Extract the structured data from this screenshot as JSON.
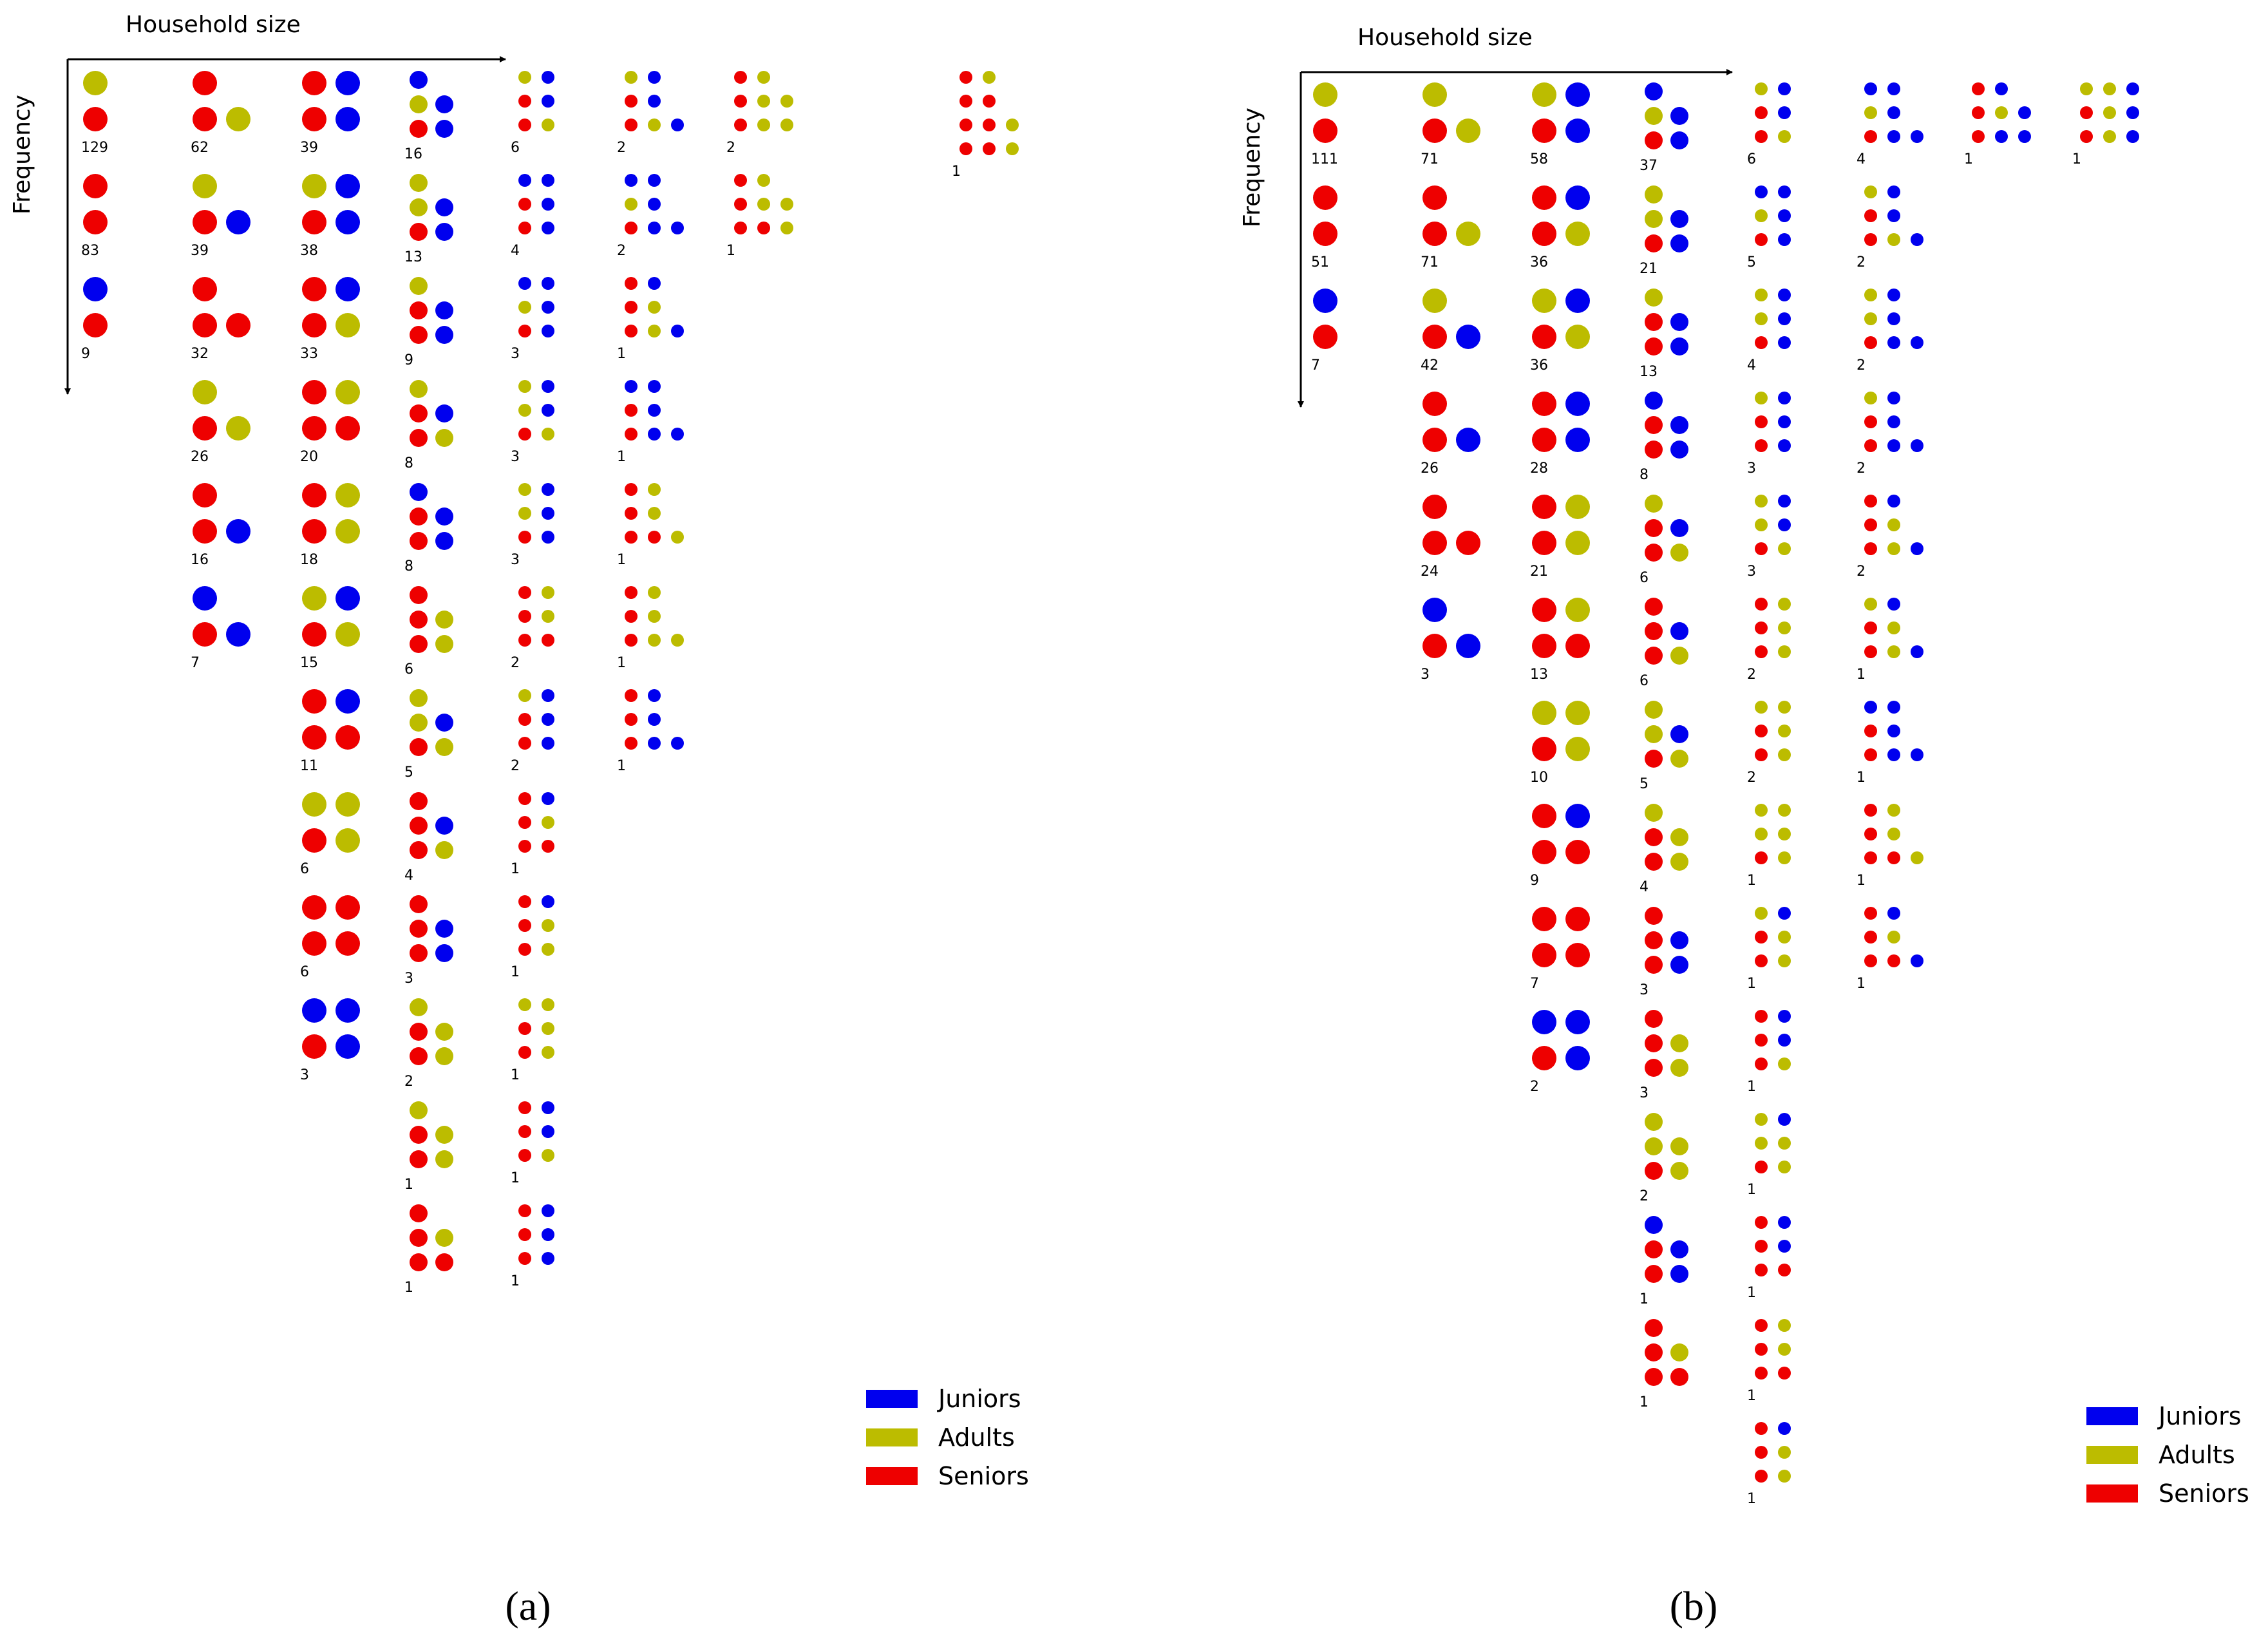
{
  "colors": {
    "juniors": "#0000ee",
    "adults": "#bcbc00",
    "seniors": "#ee0000"
  },
  "legend": {
    "juniors": "Juniors",
    "adults": "Adults",
    "seniors": "Seniors"
  },
  "panels": [
    {
      "id": "a",
      "caption": "(a)",
      "x_axis_label": "Household size",
      "y_axis_label": "Frequency",
      "columns": [
        {
          "size": 2,
          "groups": [
            {
              "count": "129",
              "rows": [
                "A",
                "S"
              ]
            },
            {
              "count": "83",
              "rows": [
                "S",
                "S"
              ]
            },
            {
              "count": "9",
              "rows": [
                "J",
                "S"
              ]
            }
          ]
        },
        {
          "size": 3,
          "groups": [
            {
              "count": "62",
              "rows": [
                "S",
                "SA"
              ]
            },
            {
              "count": "39",
              "rows": [
                "A",
                "SJ"
              ]
            },
            {
              "count": "32",
              "rows": [
                "S",
                "SS"
              ]
            },
            {
              "count": "26",
              "rows": [
                "A",
                "SA"
              ]
            },
            {
              "count": "16",
              "rows": [
                "S",
                "SJ"
              ]
            },
            {
              "count": "7",
              "rows": [
                "J",
                "SJ"
              ]
            }
          ]
        },
        {
          "size": 4,
          "groups": [
            {
              "count": "39",
              "rows": [
                "SJ",
                "SJ"
              ]
            },
            {
              "count": "38",
              "rows": [
                "AJ",
                "SJ"
              ]
            },
            {
              "count": "33",
              "rows": [
                "SJ",
                "SA"
              ]
            },
            {
              "count": "20",
              "rows": [
                "SA",
                "SS"
              ]
            },
            {
              "count": "18",
              "rows": [
                "SA",
                "SA"
              ]
            },
            {
              "count": "15",
              "rows": [
                "AJ",
                "SA"
              ]
            },
            {
              "count": "11",
              "rows": [
                "SJ",
                "SS"
              ]
            },
            {
              "count": "6",
              "rows": [
                "AA",
                "SA"
              ]
            },
            {
              "count": "6",
              "rows": [
                "SS",
                "SS"
              ]
            },
            {
              "count": "3",
              "rows": [
                "JJ",
                "SJ"
              ]
            }
          ]
        },
        {
          "size": 5,
          "groups": [
            {
              "count": "16",
              "rows": [
                "J",
                "AJ",
                "SJ"
              ]
            },
            {
              "count": "13",
              "rows": [
                "A",
                "AJ",
                "SJ"
              ]
            },
            {
              "count": "9",
              "rows": [
                "A",
                "SJ",
                "SJ"
              ]
            },
            {
              "count": "8",
              "rows": [
                "A",
                "SJ",
                "SA"
              ]
            },
            {
              "count": "8",
              "rows": [
                "J",
                "SJ",
                "SJ"
              ]
            },
            {
              "count": "6",
              "rows": [
                "S",
                "SA",
                "SA"
              ]
            },
            {
              "count": "5",
              "rows": [
                "A",
                "AJ",
                "SA"
              ]
            },
            {
              "count": "4",
              "rows": [
                "S",
                "SJ",
                "SA"
              ]
            },
            {
              "count": "3",
              "rows": [
                "S",
                "SJ",
                "SJ"
              ]
            },
            {
              "count": "2",
              "rows": [
                "A",
                "SA",
                "SA"
              ]
            },
            {
              "count": "1",
              "rows": [
                "A",
                "SA",
                "SA"
              ]
            },
            {
              "count": "1",
              "rows": [
                "S",
                "SA",
                "SS"
              ]
            }
          ]
        },
        {
          "size": 6,
          "groups": [
            {
              "count": "6",
              "rows": [
                "AJ",
                "SJ",
                "SA"
              ]
            },
            {
              "count": "4",
              "rows": [
                "JJ",
                "SJ",
                "SJ"
              ]
            },
            {
              "count": "3",
              "rows": [
                "JJ",
                "AJ",
                "SJ"
              ]
            },
            {
              "count": "3",
              "rows": [
                "AJ",
                "AJ",
                "SA"
              ]
            },
            {
              "count": "3",
              "rows": [
                "AJ",
                "AJ",
                "SJ"
              ]
            },
            {
              "count": "2",
              "rows": [
                "SA",
                "SA",
                "SS"
              ]
            },
            {
              "count": "2",
              "rows": [
                "AJ",
                "SJ",
                "SJ"
              ]
            },
            {
              "count": "1",
              "rows": [
                "SJ",
                "SA",
                "SS"
              ]
            },
            {
              "count": "1",
              "rows": [
                "SJ",
                "SA",
                "SA"
              ]
            },
            {
              "count": "1",
              "rows": [
                "AA",
                "SA",
                "SA"
              ]
            },
            {
              "count": "1",
              "rows": [
                "SJ",
                "SJ",
                "SA"
              ]
            },
            {
              "count": "1",
              "rows": [
                "SJ",
                "SJ",
                "SJ"
              ]
            }
          ]
        },
        {
          "size": 7,
          "groups": [
            {
              "count": "2",
              "rows": [
                "AJ",
                "SJ",
                "SAJ"
              ]
            },
            {
              "count": "2",
              "rows": [
                "JJ",
                "AJ",
                "SJJ"
              ]
            },
            {
              "count": "1",
              "rows": [
                "SJ",
                "SA",
                "SAJ"
              ]
            },
            {
              "count": "1",
              "rows": [
                "JJ",
                "SJ",
                "SJJ"
              ]
            },
            {
              "count": "1",
              "rows": [
                "SA",
                "SA",
                "SSA"
              ]
            },
            {
              "count": "1",
              "rows": [
                "SA",
                "SA",
                "SAA"
              ]
            },
            {
              "count": "1",
              "rows": [
                "SJ",
                "SJ",
                "SJJ"
              ]
            }
          ]
        },
        {
          "size": 8,
          "groups": [
            {
              "count": "2",
              "rows": [
                "SA",
                "SAA",
                "SAA"
              ]
            },
            {
              "count": "1",
              "rows": [
                "SA",
                "SAA",
                "SSA"
              ]
            }
          ]
        },
        {
          "size": 11,
          "groups": [
            {
              "count": "1",
              "rows": [
                "SA",
                "SS",
                "SSA",
                "SSA"
              ]
            }
          ]
        }
      ]
    },
    {
      "id": "b",
      "caption": "(b)",
      "x_axis_label": "Household size",
      "y_axis_label": "Frequency",
      "columns": [
        {
          "size": 2,
          "groups": [
            {
              "count": "111",
              "rows": [
                "A",
                "S"
              ]
            },
            {
              "count": "51",
              "rows": [
                "S",
                "S"
              ]
            },
            {
              "count": "7",
              "rows": [
                "J",
                "S"
              ]
            }
          ]
        },
        {
          "size": 3,
          "groups": [
            {
              "count": "71",
              "rows": [
                "A",
                "SA"
              ]
            },
            {
              "count": "71",
              "rows": [
                "S",
                "SA"
              ]
            },
            {
              "count": "42",
              "rows": [
                "A",
                "SJ"
              ]
            },
            {
              "count": "26",
              "rows": [
                "S",
                "SJ"
              ]
            },
            {
              "count": "24",
              "rows": [
                "S",
                "SS"
              ]
            },
            {
              "count": "3",
              "rows": [
                "J",
                "SJ"
              ]
            }
          ]
        },
        {
          "size": 4,
          "groups": [
            {
              "count": "58",
              "rows": [
                "AJ",
                "SJ"
              ]
            },
            {
              "count": "36",
              "rows": [
                "SJ",
                "SA"
              ]
            },
            {
              "count": "36",
              "rows": [
                "AJ",
                "SA"
              ]
            },
            {
              "count": "28",
              "rows": [
                "SJ",
                "SJ"
              ]
            },
            {
              "count": "21",
              "rows": [
                "SA",
                "SA"
              ]
            },
            {
              "count": "13",
              "rows": [
                "SA",
                "SS"
              ]
            },
            {
              "count": "10",
              "rows": [
                "AA",
                "SA"
              ]
            },
            {
              "count": "9",
              "rows": [
                "SJ",
                "SS"
              ]
            },
            {
              "count": "7",
              "rows": [
                "SS",
                "SS"
              ]
            },
            {
              "count": "2",
              "rows": [
                "JJ",
                "SJ"
              ]
            }
          ]
        },
        {
          "size": 5,
          "groups": [
            {
              "count": "37",
              "rows": [
                "J",
                "AJ",
                "SJ"
              ]
            },
            {
              "count": "21",
              "rows": [
                "A",
                "AJ",
                "SJ"
              ]
            },
            {
              "count": "13",
              "rows": [
                "A",
                "SJ",
                "SJ"
              ]
            },
            {
              "count": "8",
              "rows": [
                "J",
                "SJ",
                "SJ"
              ]
            },
            {
              "count": "6",
              "rows": [
                "A",
                "SJ",
                "SA"
              ]
            },
            {
              "count": "6",
              "rows": [
                "S",
                "SJ",
                "SA"
              ]
            },
            {
              "count": "5",
              "rows": [
                "A",
                "AJ",
                "SA"
              ]
            },
            {
              "count": "4",
              "rows": [
                "A",
                "SA",
                "SA"
              ]
            },
            {
              "count": "3",
              "rows": [
                "S",
                "SJ",
                "SJ"
              ]
            },
            {
              "count": "3",
              "rows": [
                "S",
                "SA",
                "SA"
              ]
            },
            {
              "count": "2",
              "rows": [
                "A",
                "AA",
                "SA"
              ]
            },
            {
              "count": "1",
              "rows": [
                "J",
                "SJ",
                "SJ"
              ]
            },
            {
              "count": "1",
              "rows": [
                "S",
                "SA",
                "SS"
              ]
            }
          ]
        },
        {
          "size": 6,
          "groups": [
            {
              "count": "6",
              "rows": [
                "AJ",
                "SJ",
                "SA"
              ]
            },
            {
              "count": "5",
              "rows": [
                "JJ",
                "AJ",
                "SJ"
              ]
            },
            {
              "count": "4",
              "rows": [
                "AJ",
                "AJ",
                "SJ"
              ]
            },
            {
              "count": "3",
              "rows": [
                "AJ",
                "SJ",
                "SJ"
              ]
            },
            {
              "count": "3",
              "rows": [
                "AJ",
                "AJ",
                "SA"
              ]
            },
            {
              "count": "2",
              "rows": [
                "SA",
                "SA",
                "SA"
              ]
            },
            {
              "count": "2",
              "rows": [
                "AA",
                "SA",
                "SA"
              ]
            },
            {
              "count": "1",
              "rows": [
                "AA",
                "AA",
                "SA"
              ]
            },
            {
              "count": "1",
              "rows": [
                "AJ",
                "SA",
                "SA"
              ]
            },
            {
              "count": "1",
              "rows": [
                "SJ",
                "SJ",
                "SA"
              ]
            },
            {
              "count": "1",
              "rows": [
                "AJ",
                "AA",
                "SA"
              ]
            },
            {
              "count": "1",
              "rows": [
                "SJ",
                "SJ",
                "SS"
              ]
            },
            {
              "count": "1",
              "rows": [
                "SA",
                "SA",
                "SS"
              ]
            },
            {
              "count": "1",
              "rows": [
                "SJ",
                "SA",
                "SA"
              ]
            }
          ]
        },
        {
          "size": 7,
          "groups": [
            {
              "count": "4",
              "rows": [
                "JJ",
                "AJ",
                "SJJ"
              ]
            },
            {
              "count": "2",
              "rows": [
                "AJ",
                "SJ",
                "SAJ"
              ]
            },
            {
              "count": "2",
              "rows": [
                "AJ",
                "AJ",
                "SJJ"
              ]
            },
            {
              "count": "2",
              "rows": [
                "AJ",
                "SJ",
                "SJJ"
              ]
            },
            {
              "count": "2",
              "rows": [
                "SJ",
                "SA",
                "SAJ"
              ]
            },
            {
              "count": "1",
              "rows": [
                "AJ",
                "SA",
                "SAJ"
              ]
            },
            {
              "count": "1",
              "rows": [
                "JJ",
                "SJ",
                "SJJ"
              ]
            },
            {
              "count": "1",
              "rows": [
                "SA",
                "SA",
                "SSA"
              ]
            },
            {
              "count": "1",
              "rows": [
                "SJ",
                "SA",
                "SSJ"
              ]
            }
          ]
        },
        {
          "size": 8,
          "groups": [
            {
              "count": "1",
              "rows": [
                "SJ",
                "SAJ",
                "SJJ"
              ]
            }
          ]
        },
        {
          "size": 9,
          "groups": [
            {
              "count": "1",
              "rows": [
                "AAJ",
                "SAJ",
                "SAJ"
              ]
            }
          ]
        }
      ]
    }
  ]
}
